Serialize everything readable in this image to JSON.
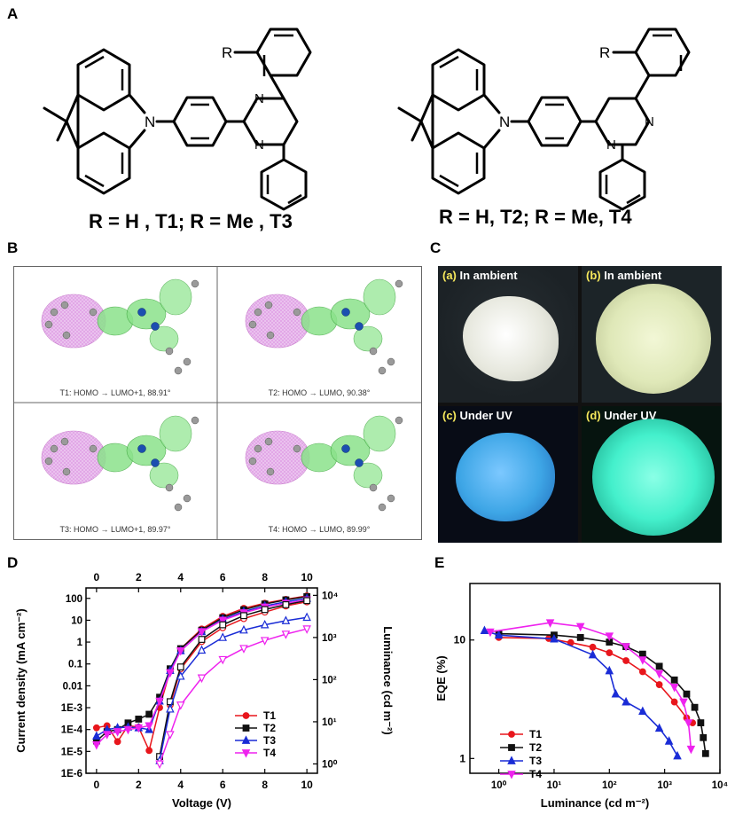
{
  "panels": {
    "A": {
      "label": "A",
      "left_caption": "R = H , T1; R = Me , T3",
      "right_caption": "R = H, T2; R = Me, T4",
      "atoms": {
        "N": "N",
        "R": "R"
      }
    },
    "B": {
      "label": "B",
      "cells": [
        "T1: HOMO → LUMO+1, 88.91°",
        "T2: HOMO → LUMO, 90.38°",
        "T3: HOMO → LUMO+1, 89.97°",
        "T4: HOMO → LUMO, 89.99°"
      ]
    },
    "C": {
      "label": "C",
      "photos": [
        {
          "tag": "(a)",
          "text": "In ambient",
          "color": "#e7e8de"
        },
        {
          "tag": "(b)",
          "text": "In ambient",
          "color": "#dfe8b8"
        },
        {
          "tag": "(c)",
          "text": "Under UV",
          "color": "#3ea6e6"
        },
        {
          "tag": "(d)",
          "text": "Under UV",
          "color": "#44f0cc"
        }
      ]
    },
    "D": {
      "label": "D"
    },
    "E": {
      "label": "E"
    }
  },
  "colors": {
    "T1": "#e8161c",
    "T2": "#111111",
    "T3": "#1a2cd6",
    "T4": "#ee22ee"
  },
  "chart_data": [
    {
      "type": "line",
      "panel": "D",
      "xlabel": "Voltage (V)",
      "ylabel": "Current density (mA cm⁻²)",
      "y2label": "Luminance (cd m⁻²)",
      "xlim": [
        -0.5,
        10.5
      ],
      "ylim": [
        1e-06,
        300
      ],
      "y2lim": [
        0.6,
        15000
      ],
      "xticks": [
        "0",
        "2",
        "4",
        "6",
        "8",
        "10"
      ],
      "yticks": [
        "1E-6",
        "1E-5",
        "1E-4",
        "1E-3",
        "0.01",
        "0.1",
        "1",
        "10",
        "100"
      ],
      "y2ticks": [
        "10⁰",
        "10¹",
        "10²",
        "10³",
        "10⁴"
      ],
      "legend": [
        "T1",
        "T2",
        "T3",
        "T4"
      ],
      "series": [
        {
          "name": "T1",
          "kind": "J",
          "x": [
            0,
            0.5,
            1,
            1.5,
            2,
            2.5,
            3,
            3.5,
            4,
            5,
            6,
            7,
            8,
            9,
            10
          ],
          "y": [
            0.00012,
            0.00015,
            2.8e-05,
            0.00015,
            0.00013,
            1.1e-05,
            0.001,
            0.05,
            0.5,
            4,
            15,
            35,
            60,
            90,
            130
          ]
        },
        {
          "name": "T2",
          "kind": "J",
          "x": [
            0,
            0.5,
            1,
            1.5,
            2,
            2.5,
            3,
            3.5,
            4,
            5,
            6,
            7,
            8,
            9,
            10
          ],
          "y": [
            3e-05,
            8e-05,
            0.0001,
            0.0002,
            0.0003,
            0.0005,
            0.003,
            0.06,
            0.5,
            3.5,
            13,
            30,
            55,
            85,
            120
          ]
        },
        {
          "name": "T3",
          "kind": "J",
          "x": [
            0,
            0.5,
            1,
            1.5,
            2,
            2.5,
            3,
            3.5,
            4,
            5,
            6,
            7,
            8,
            9,
            10
          ],
          "y": [
            5e-05,
            0.0001,
            0.00012,
            0.00013,
            0.00012,
            0.0001,
            0.002,
            0.05,
            0.4,
            3,
            11,
            25,
            45,
            70,
            100
          ]
        },
        {
          "name": "T4",
          "kind": "J",
          "x": [
            0,
            0.5,
            1,
            1.5,
            2,
            2.5,
            3,
            3.5,
            4,
            5,
            6,
            7,
            8,
            9,
            10
          ],
          "y": [
            2e-05,
            6e-05,
            8e-05,
            0.0001,
            0.00012,
            0.00015,
            0.002,
            0.04,
            0.4,
            3,
            10,
            22,
            40,
            60,
            85
          ]
        },
        {
          "name": "T1",
          "kind": "L",
          "x": [
            3,
            3.5,
            4,
            5,
            6,
            7,
            8,
            9,
            10
          ],
          "y": [
            1.5,
            25,
            180,
            800,
            1700,
            2800,
            4000,
            5600,
            7000
          ]
        },
        {
          "name": "T2",
          "kind": "L",
          "x": [
            3,
            3.5,
            4,
            5,
            6,
            7,
            8,
            9,
            10
          ],
          "y": [
            1.5,
            30,
            200,
            900,
            2000,
            3300,
            4600,
            6000,
            7500
          ]
        },
        {
          "name": "T3",
          "kind": "L",
          "x": [
            3,
            3.5,
            4,
            5,
            6,
            7,
            8,
            9,
            10
          ],
          "y": [
            1.2,
            20,
            120,
            500,
            1000,
            1500,
            2000,
            2500,
            3000
          ]
        },
        {
          "name": "T4",
          "kind": "L",
          "x": [
            3,
            3.5,
            4,
            5,
            6,
            7,
            8,
            9,
            10
          ],
          "y": [
            1.0,
            5,
            25,
            110,
            300,
            550,
            850,
            1200,
            1600
          ]
        }
      ]
    },
    {
      "type": "line",
      "panel": "E",
      "xlabel": "Luminance (cd m⁻²)",
      "ylabel": "EQE (%)",
      "xlim": [
        0.3,
        10000
      ],
      "ylim": [
        0.75,
        30
      ],
      "xticks": [
        "10⁰",
        "10¹",
        "10²",
        "10³",
        "10⁴"
      ],
      "yticks": [
        "1",
        "10"
      ],
      "legend": [
        "T1",
        "T2",
        "T3",
        "T4"
      ],
      "series": [
        {
          "name": "T1",
          "x": [
            1,
            8,
            20,
            50,
            100,
            200,
            400,
            800,
            1500,
            2500,
            3200
          ],
          "y": [
            10.5,
            10.3,
            9.5,
            8.7,
            7.8,
            6.7,
            5.4,
            4.2,
            3.0,
            2.2,
            2.0
          ]
        },
        {
          "name": "T2",
          "x": [
            1,
            10,
            30,
            100,
            200,
            400,
            800,
            1500,
            2500,
            3500,
            4500,
            5000,
            5500
          ],
          "y": [
            11.3,
            11.0,
            10.5,
            9.6,
            8.8,
            7.6,
            6.0,
            4.6,
            3.5,
            2.7,
            2.0,
            1.5,
            1.1
          ]
        },
        {
          "name": "T3",
          "x": [
            0.55,
            1,
            10,
            50,
            100,
            130,
            200,
            400,
            800,
            1200,
            1700
          ],
          "y": [
            12.0,
            11.0,
            10.2,
            7.5,
            5.5,
            3.5,
            3.0,
            2.5,
            1.8,
            1.4,
            1.05
          ]
        },
        {
          "name": "T4",
          "x": [
            0.7,
            8.5,
            30,
            100,
            200,
            400,
            800,
            1500,
            2200,
            2700,
            3000
          ],
          "y": [
            11.7,
            14.0,
            13.0,
            10.8,
            8.8,
            6.8,
            5.2,
            4.0,
            3.0,
            2.0,
            1.2
          ]
        }
      ]
    }
  ]
}
